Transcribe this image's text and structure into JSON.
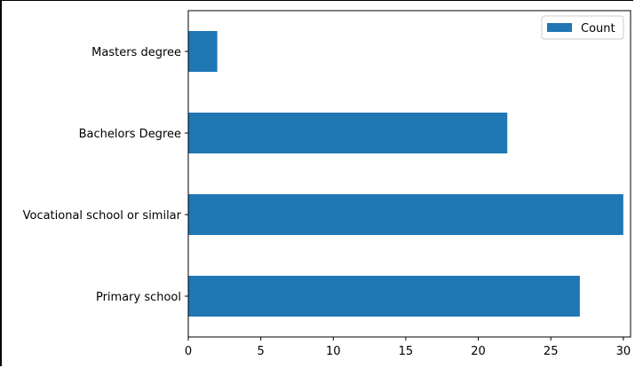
{
  "chart_data": {
    "type": "bar",
    "orientation": "horizontal",
    "categories": [
      "Primary school",
      "Vocational school or similar",
      "Bachelors Degree",
      "Masters degree"
    ],
    "series": [
      {
        "name": "Count",
        "values": [
          27,
          30,
          22,
          2
        ]
      }
    ],
    "xlim": [
      0,
      30.5
    ],
    "xticks": [
      0,
      5,
      10,
      15,
      20,
      25,
      30
    ],
    "xtick_labels": [
      "0",
      "5",
      "10",
      "15",
      "20",
      "25",
      "30"
    ],
    "xlabel": "",
    "ylabel": "",
    "title": "",
    "grid": false,
    "legend_position": "top-right",
    "colors": {
      "bar": "#1f77b4",
      "axes": "#000000"
    }
  }
}
